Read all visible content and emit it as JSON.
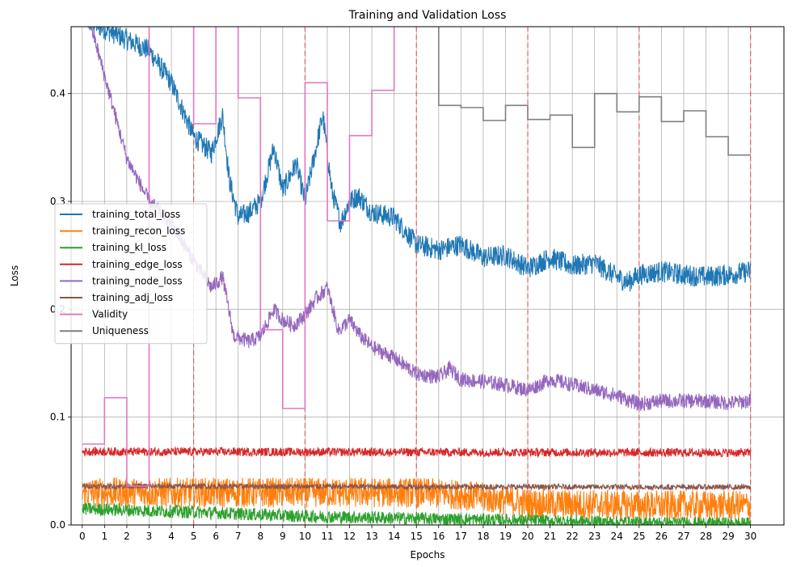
{
  "chart_data": {
    "type": "line",
    "title": "Training and Validation Loss",
    "xlabel": "Epochs",
    "ylabel": "Loss",
    "xlim": [
      -0.5,
      31.5
    ],
    "ylim": [
      0,
      0.462
    ],
    "x_ticks": [
      0,
      1,
      2,
      3,
      4,
      5,
      6,
      7,
      8,
      9,
      10,
      11,
      12,
      13,
      14,
      15,
      16,
      17,
      18,
      19,
      20,
      21,
      22,
      23,
      24,
      25,
      26,
      27,
      28,
      29,
      30
    ],
    "y_ticks": [
      0.0,
      0.1,
      0.2,
      0.3,
      0.4
    ],
    "y_tick_labels": [
      "0.0",
      "0.1",
      "0.2",
      "0.3",
      "0.4"
    ],
    "grid": true,
    "legend_position": "center-left",
    "vertical_markers": [
      5,
      10,
      15,
      20,
      25,
      30
    ],
    "vertical_marker_color": "#e05050",
    "series": [
      {
        "name": "training_total_loss",
        "color": "#1f77b4",
        "noise": 0.01,
        "points": [
          [
            0,
            0.47
          ],
          [
            3,
            0.44
          ],
          [
            4,
            0.41
          ],
          [
            5,
            0.36
          ],
          [
            5.8,
            0.345
          ],
          [
            6.3,
            0.38
          ],
          [
            6.6,
            0.32
          ],
          [
            7,
            0.285
          ],
          [
            7.5,
            0.29
          ],
          [
            8,
            0.3
          ],
          [
            8.6,
            0.35
          ],
          [
            9,
            0.31
          ],
          [
            9.6,
            0.335
          ],
          [
            10,
            0.3
          ],
          [
            10.5,
            0.35
          ],
          [
            10.8,
            0.38
          ],
          [
            11.2,
            0.31
          ],
          [
            11.6,
            0.28
          ],
          [
            12,
            0.3
          ],
          [
            12.4,
            0.305
          ],
          [
            13,
            0.29
          ],
          [
            14,
            0.285
          ],
          [
            15,
            0.26
          ],
          [
            16,
            0.255
          ],
          [
            17,
            0.26
          ],
          [
            18,
            0.248
          ],
          [
            19,
            0.25
          ],
          [
            20,
            0.238
          ],
          [
            21,
            0.248
          ],
          [
            22,
            0.24
          ],
          [
            23,
            0.243
          ],
          [
            24,
            0.23
          ],
          [
            24.5,
            0.225
          ],
          [
            25,
            0.232
          ],
          [
            26,
            0.235
          ],
          [
            27,
            0.232
          ],
          [
            28,
            0.23
          ],
          [
            29,
            0.232
          ],
          [
            30,
            0.235
          ]
        ]
      },
      {
        "name": "training_recon_loss",
        "color": "#ff7f0e",
        "noise": 0.014,
        "points": [
          [
            0,
            0.03
          ],
          [
            5,
            0.03
          ],
          [
            10,
            0.03
          ],
          [
            15,
            0.03
          ],
          [
            17,
            0.028
          ],
          [
            20,
            0.02
          ],
          [
            25,
            0.018
          ],
          [
            30,
            0.018
          ]
        ]
      },
      {
        "name": "training_kl_loss",
        "color": "#2ca02c",
        "noise": 0.006,
        "points": [
          [
            0,
            0.015
          ],
          [
            5,
            0.012
          ],
          [
            10,
            0.008
          ],
          [
            15,
            0.006
          ],
          [
            20,
            0.004
          ],
          [
            25,
            0.002
          ],
          [
            30,
            0.001
          ]
        ]
      },
      {
        "name": "training_edge_loss",
        "color": "#d62728",
        "noise": 0.004,
        "points": [
          [
            0,
            0.068
          ],
          [
            30,
            0.067
          ]
        ]
      },
      {
        "name": "training_node_loss",
        "color": "#9467bd",
        "noise": 0.007,
        "points": [
          [
            0.3,
            0.47
          ],
          [
            2,
            0.34
          ],
          [
            3,
            0.3
          ],
          [
            4,
            0.28
          ],
          [
            5,
            0.245
          ],
          [
            5.8,
            0.22
          ],
          [
            6.3,
            0.23
          ],
          [
            6.8,
            0.175
          ],
          [
            7.5,
            0.17
          ],
          [
            8,
            0.175
          ],
          [
            8.6,
            0.2
          ],
          [
            9,
            0.19
          ],
          [
            9.5,
            0.185
          ],
          [
            10,
            0.195
          ],
          [
            10.5,
            0.21
          ],
          [
            11,
            0.22
          ],
          [
            11.5,
            0.18
          ],
          [
            12,
            0.19
          ],
          [
            12.5,
            0.175
          ],
          [
            13,
            0.165
          ],
          [
            14,
            0.155
          ],
          [
            15,
            0.14
          ],
          [
            16,
            0.137
          ],
          [
            16.5,
            0.145
          ],
          [
            17,
            0.135
          ],
          [
            18,
            0.133
          ],
          [
            19,
            0.13
          ],
          [
            20,
            0.125
          ],
          [
            20.5,
            0.13
          ],
          [
            21,
            0.135
          ],
          [
            22,
            0.13
          ],
          [
            23,
            0.125
          ],
          [
            24,
            0.12
          ],
          [
            25,
            0.112
          ],
          [
            26,
            0.115
          ],
          [
            27,
            0.115
          ],
          [
            28,
            0.115
          ],
          [
            29,
            0.113
          ],
          [
            30,
            0.115
          ]
        ]
      },
      {
        "name": "training_adj_loss",
        "color": "#8c564b",
        "noise": 0.0025,
        "points": [
          [
            0,
            0.036
          ],
          [
            30,
            0.035
          ]
        ]
      },
      {
        "name": "Validity",
        "color": "#e377c2",
        "step": true,
        "points": [
          [
            0,
            0.075
          ],
          [
            1,
            0.118
          ],
          [
            2,
            0.036
          ],
          [
            3,
            0.5
          ],
          [
            5,
            0.372
          ],
          [
            6,
            0.5
          ],
          [
            7,
            0.396
          ],
          [
            8,
            0.181
          ],
          [
            9,
            0.108
          ],
          [
            10,
            0.41
          ],
          [
            11,
            0.282
          ],
          [
            12,
            0.361
          ],
          [
            13,
            0.403
          ],
          [
            14,
            0.5
          ],
          [
            15,
            0.5
          ]
        ]
      },
      {
        "name": "Uniqueness",
        "color": "#7f7f7f",
        "step": true,
        "points": [
          [
            15,
            0.5
          ],
          [
            16,
            0.389
          ],
          [
            17,
            0.387
          ],
          [
            18,
            0.375
          ],
          [
            19,
            0.389
          ],
          [
            20,
            0.376
          ],
          [
            21,
            0.38
          ],
          [
            22,
            0.35
          ],
          [
            23,
            0.4
          ],
          [
            24,
            0.383
          ],
          [
            25,
            0.397
          ],
          [
            26,
            0.374
          ],
          [
            27,
            0.384
          ],
          [
            28,
            0.36
          ],
          [
            29,
            0.343
          ],
          [
            30,
            0.343
          ]
        ]
      }
    ]
  }
}
